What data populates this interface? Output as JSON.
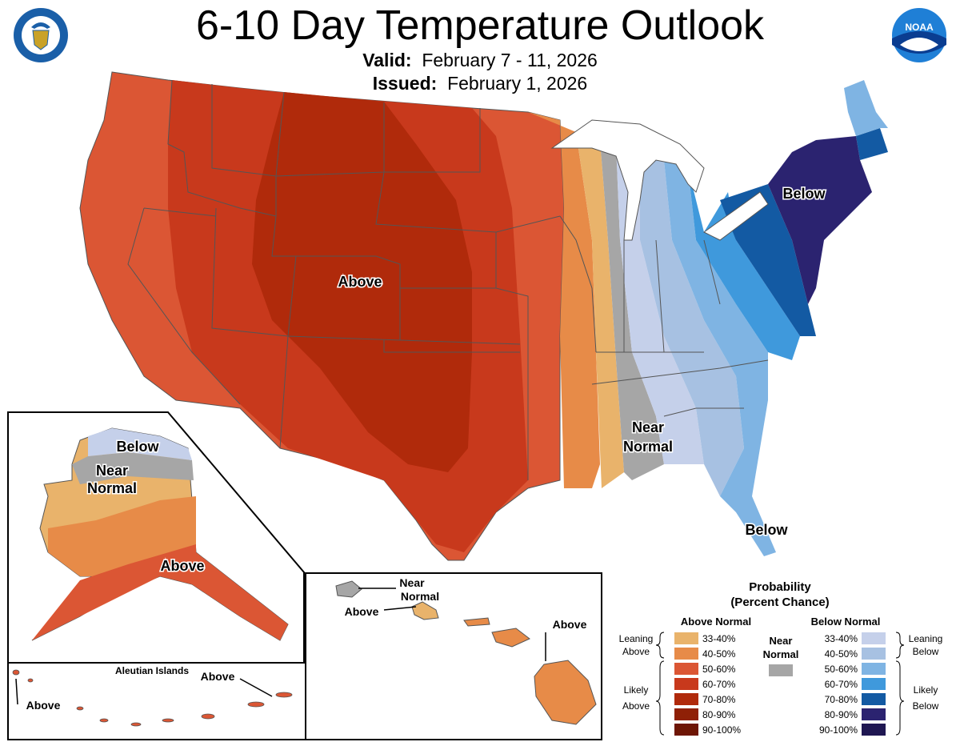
{
  "header": {
    "title": "6-10 Day Temperature Outlook",
    "valid_label": "Valid:",
    "valid_value": "February 7 - 11, 2026",
    "issued_label": "Issued:",
    "issued_value": "February 1, 2026"
  },
  "logos": {
    "left": "department-of-commerce-seal",
    "right": "noaa-logo",
    "right_text": "NOAA"
  },
  "map_labels": {
    "conus_above": "Above",
    "conus_near1": "Near",
    "conus_near2": "Normal",
    "conus_below_ne": "Below",
    "conus_below_fl": "Below",
    "ak_below": "Below",
    "ak_near1": "Near",
    "ak_near2": "Normal",
    "ak_above": "Above",
    "aleutian_title": "Aleutian Islands",
    "aleutian_above1": "Above",
    "aleutian_above2": "Above",
    "hi_near1": "Near",
    "hi_near2": "Normal",
    "hi_above1": "Above",
    "hi_above2": "Above"
  },
  "legend": {
    "title1": "Probability",
    "title2": "(Percent Chance)",
    "above_header": "Above Normal",
    "below_header": "Below Normal",
    "near_label1": "Near",
    "near_label2": "Normal",
    "leaning_above1": "Leaning",
    "leaning_above2": "Above",
    "likely_above1": "Likely",
    "likely_above2": "Above",
    "leaning_below1": "Leaning",
    "leaning_below2": "Below",
    "likely_below1": "Likely",
    "likely_below2": "Below",
    "above_items": [
      {
        "range": "33-40%",
        "color": "#e9b36b"
      },
      {
        "range": "40-50%",
        "color": "#e78b48"
      },
      {
        "range": "50-60%",
        "color": "#db5634"
      },
      {
        "range": "60-70%",
        "color": "#c8391c"
      },
      {
        "range": "70-80%",
        "color": "#b02a0b"
      },
      {
        "range": "80-90%",
        "color": "#8f2006"
      },
      {
        "range": "90-100%",
        "color": "#6e1605"
      }
    ],
    "below_items": [
      {
        "range": "33-40%",
        "color": "#c5d0ea"
      },
      {
        "range": "40-50%",
        "color": "#a7c1e2"
      },
      {
        "range": "50-60%",
        "color": "#7fb4e3"
      },
      {
        "range": "60-70%",
        "color": "#3f99dc"
      },
      {
        "range": "70-80%",
        "color": "#135aa3"
      },
      {
        "range": "80-90%",
        "color": "#2b2370"
      },
      {
        "range": "90-100%",
        "color": "#1f1752"
      }
    ],
    "near_color": "#a6a6a6"
  }
}
